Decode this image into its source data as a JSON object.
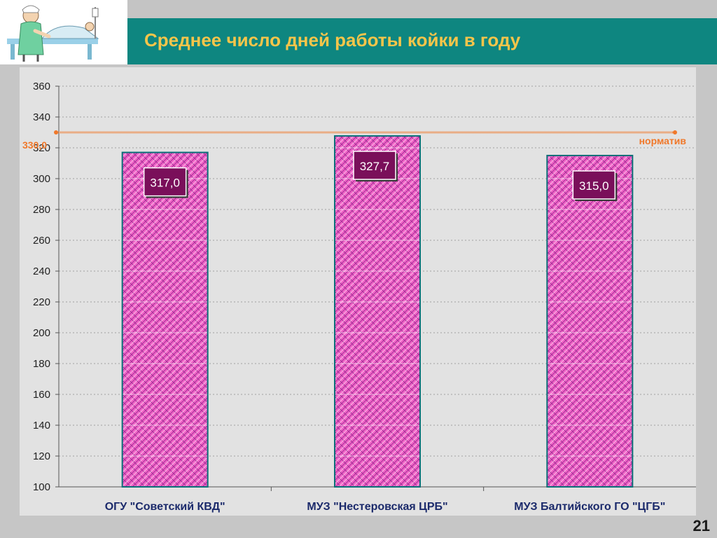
{
  "slide": {
    "title": "Среднее число дней работы койки в году",
    "page_number": "21"
  },
  "colors": {
    "header_band": "#0e8680",
    "title_text": "#f6c54a",
    "bar_fill": "#f266c8",
    "bar_border": "#0b6f78",
    "value_label_bg": "#7a0f5a",
    "norm_line": "#f0782a"
  },
  "chart_data": {
    "type": "bar",
    "categories": [
      "ОГУ \"Советский КВД\"",
      "МУЗ \"Нестеровская ЦРБ\"",
      "МУЗ Балтийского ГО \"ЦГБ\""
    ],
    "values": [
      317.0,
      327.7,
      315.0
    ],
    "value_labels": [
      "317,0",
      "327,7",
      "315,0"
    ],
    "ylim": [
      100,
      360
    ],
    "yticks": [
      100,
      120,
      140,
      160,
      180,
      200,
      220,
      240,
      260,
      280,
      300,
      320,
      340,
      360
    ],
    "grid": true,
    "reference_line": {
      "value": 330.0,
      "label": "330,0",
      "name": "норматив"
    }
  }
}
